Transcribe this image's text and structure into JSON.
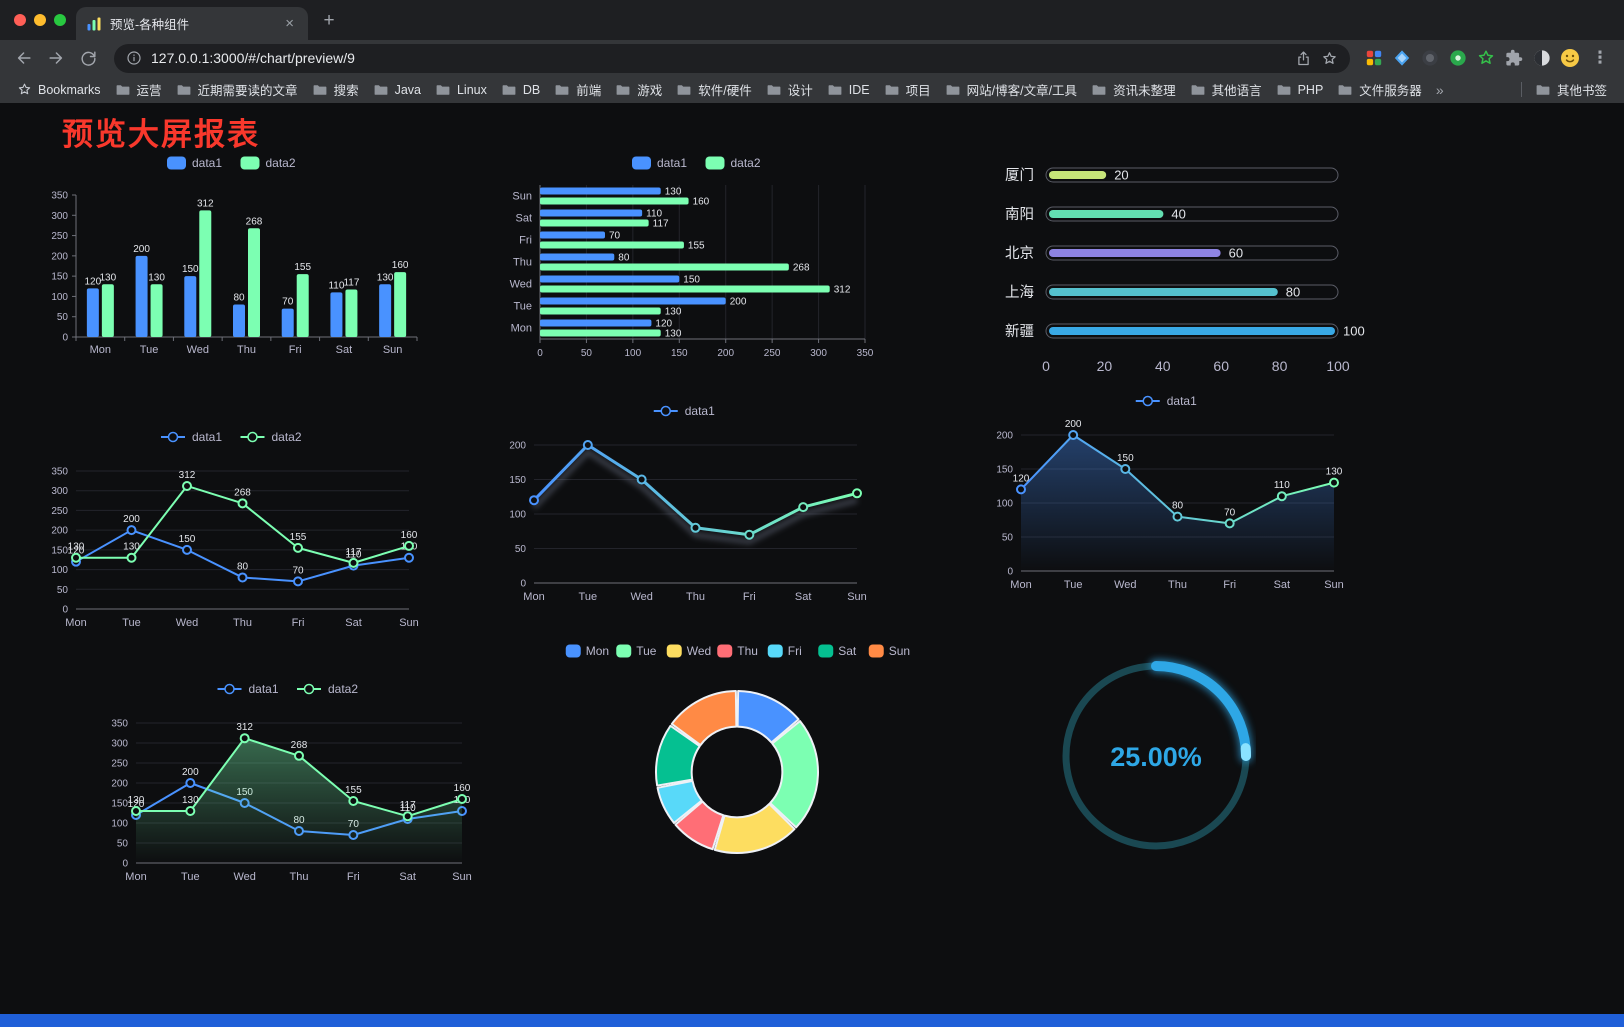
{
  "window": {
    "tab_title": "预览-各种组件",
    "url": "127.0.0.1:3000/#/chart/preview/9",
    "close_glyph": "×",
    "new_tab_glyph": "+",
    "menu_glyph": "⋮"
  },
  "bookmarks": {
    "bar_label": "Bookmarks",
    "folders": [
      "运营",
      "近期需要读的文章",
      "搜索",
      "Java",
      "Linux",
      "DB",
      "前端",
      "游戏",
      "软件/硬件",
      "设计",
      "IDE",
      "项目",
      "网站/博客/文章/工具",
      "资讯未整理",
      "其他语言",
      "PHP",
      "文件服务器"
    ],
    "overflow_glyph": "»",
    "other_label": "其他书签"
  },
  "page": {
    "title": "预览大屏报表",
    "title_color": "#f9382c",
    "footer_color": "#1f5fd8"
  },
  "chart_data": [
    {
      "type": "bar",
      "categories": [
        "Mon",
        "Tue",
        "Wed",
        "Thu",
        "Fri",
        "Sat",
        "Sun"
      ],
      "series": [
        {
          "name": "data1",
          "color": "#4992ff",
          "values": [
            120,
            200,
            150,
            80,
            70,
            110,
            130
          ],
          "labels": true
        },
        {
          "name": "data2",
          "color": "#7cffb2",
          "values": [
            130,
            130,
            312,
            268,
            155,
            117,
            160
          ],
          "labels": true
        }
      ],
      "ylim": [
        0,
        350
      ],
      "ytick": 50,
      "legend_position": "top"
    },
    {
      "type": "hbar",
      "categories": [
        "Mon",
        "Tue",
        "Wed",
        "Thu",
        "Fri",
        "Sat",
        "Sun"
      ],
      "series": [
        {
          "name": "data1",
          "color": "#4992ff",
          "values": [
            120,
            200,
            150,
            80,
            70,
            110,
            130
          ],
          "labels": true
        },
        {
          "name": "data2",
          "color": "#7cffb2",
          "values": [
            130,
            130,
            312,
            268,
            155,
            117,
            160
          ],
          "labels": true
        }
      ],
      "xlim": [
        0,
        350
      ],
      "xtick": 50,
      "legend_position": "top"
    },
    {
      "type": "progress",
      "max": 100,
      "ticks": [
        0,
        20,
        40,
        60,
        80,
        100
      ],
      "items": [
        {
          "label": "厦门",
          "value": 20,
          "color": "#c6e579"
        },
        {
          "label": "南阳",
          "value": 40,
          "color": "#63dfb1"
        },
        {
          "label": "北京",
          "value": 60,
          "color": "#8e84e3"
        },
        {
          "label": "上海",
          "value": 80,
          "color": "#55c1ce"
        },
        {
          "label": "新疆",
          "value": 100,
          "color": "#39a9e6"
        }
      ]
    },
    {
      "type": "line",
      "categories": [
        "Mon",
        "Tue",
        "Wed",
        "Thu",
        "Fri",
        "Sat",
        "Sun"
      ],
      "series": [
        {
          "name": "data1",
          "color": "#4992ff",
          "values": [
            120,
            200,
            150,
            80,
            70,
            110,
            130
          ],
          "labels": true
        },
        {
          "name": "data2",
          "color": "#7cffb2",
          "values": [
            130,
            130,
            312,
            268,
            155,
            117,
            160
          ],
          "labels": true
        }
      ],
      "ylim": [
        0,
        350
      ],
      "ytick": 50,
      "legend_position": "top"
    },
    {
      "type": "line",
      "categories": [
        "Mon",
        "Tue",
        "Wed",
        "Thu",
        "Fri",
        "Sat",
        "Sun"
      ],
      "series": [
        {
          "name": "data1",
          "gradient": [
            "#4992ff",
            "#7cffb2"
          ],
          "values": [
            120,
            200,
            150,
            80,
            70,
            110,
            130
          ],
          "labels": false,
          "shadow": true,
          "width": 3
        }
      ],
      "ylim": [
        0,
        200
      ],
      "ytick": 50,
      "legend_position": "top"
    },
    {
      "type": "line",
      "categories": [
        "Mon",
        "Tue",
        "Wed",
        "Thu",
        "Fri",
        "Sat",
        "Sun"
      ],
      "series": [
        {
          "name": "data1",
          "gradient": [
            "#4992ff",
            "#7cffb2"
          ],
          "values": [
            120,
            200,
            150,
            80,
            70,
            110,
            130
          ],
          "labels": true,
          "area": true,
          "area_color": "#4992ff"
        }
      ],
      "ylim": [
        0,
        200
      ],
      "ytick": 50,
      "legend_position": "top"
    },
    {
      "type": "line",
      "categories": [
        "Mon",
        "Tue",
        "Wed",
        "Thu",
        "Fri",
        "Sat",
        "Sun"
      ],
      "series": [
        {
          "name": "data1",
          "color": "#4992ff",
          "values": [
            120,
            200,
            150,
            80,
            70,
            110,
            130
          ],
          "labels": true
        },
        {
          "name": "data2",
          "color": "#7cffb2",
          "values": [
            130,
            130,
            312,
            268,
            155,
            117,
            160
          ],
          "labels": true,
          "area": true,
          "area_color": "#7cffb2"
        }
      ],
      "ylim": [
        0,
        350
      ],
      "ytick": 50,
      "legend_position": "top"
    },
    {
      "type": "donut",
      "items": [
        {
          "label": "Mon",
          "value": 120,
          "color": "#4992ff"
        },
        {
          "label": "Tue",
          "value": 200,
          "color": "#7cffb2"
        },
        {
          "label": "Wed",
          "value": 150,
          "color": "#fddd60"
        },
        {
          "label": "Thu",
          "value": 80,
          "color": "#ff6e76"
        },
        {
          "label": "Fri",
          "value": 70,
          "color": "#58d9f9"
        },
        {
          "label": "Sat",
          "value": 110,
          "color": "#05c091"
        },
        {
          "label": "Sun",
          "value": 130,
          "color": "#ff8a45"
        }
      ],
      "legend_position": "top"
    },
    {
      "type": "gauge",
      "value": 25,
      "label": "25.00%",
      "color": "#2ea7e6",
      "tip": "#8ae2ff",
      "track": "#1a4852"
    }
  ]
}
